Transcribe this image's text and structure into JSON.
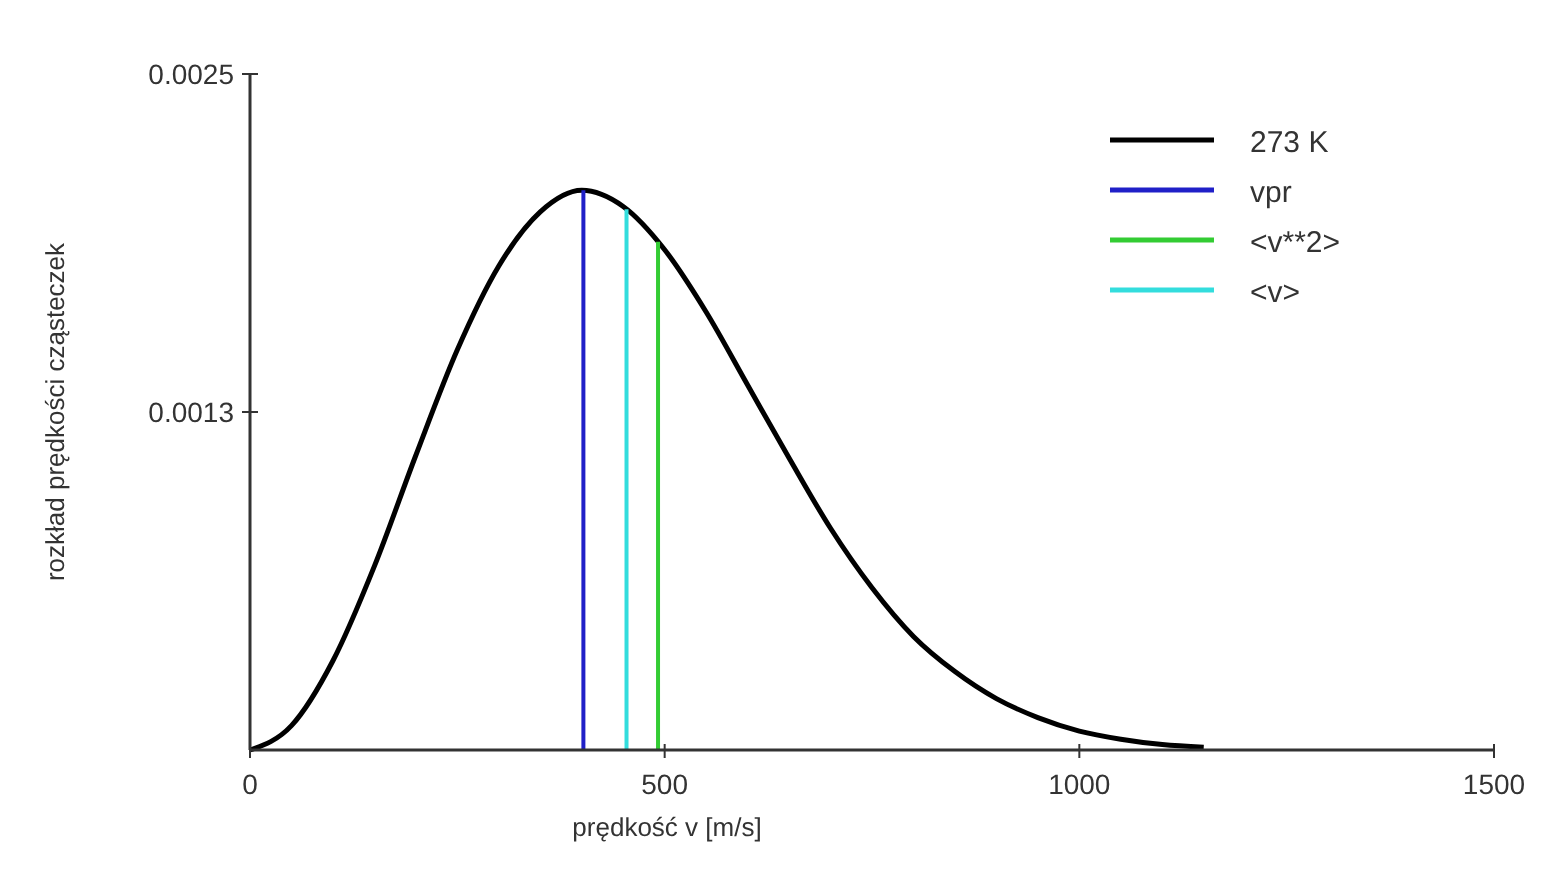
{
  "chart_data": {
    "type": "line",
    "xlabel": "prędkość v [m/s]",
    "ylabel": "rozkład prędkości cząsteczek",
    "xlim": [
      0,
      1500
    ],
    "ylim": [
      0,
      0.0025
    ],
    "xticks": [
      0,
      500,
      1000,
      1500
    ],
    "yticks": [
      {
        "value": 0.00125,
        "label": "0.0013"
      },
      0.0025
    ],
    "legend": "top right",
    "grid": false,
    "series": [
      {
        "name": "273 K",
        "color": "#000000",
        "x": [
          0,
          50,
          100,
          150,
          200,
          250,
          300,
          350,
          400,
          450,
          500,
          550,
          600,
          650,
          700,
          750,
          800,
          850,
          900,
          950,
          1000,
          1050,
          1100,
          1150
        ],
        "values": [
          0,
          9e-05,
          0.00033,
          0.00068,
          0.00109,
          0.00148,
          0.00179,
          0.00199,
          0.00207,
          0.00201,
          0.00185,
          0.00162,
          0.00135,
          0.00108,
          0.00082,
          0.0006,
          0.00042,
          0.00029,
          0.00019,
          0.00012,
          7e-05,
          4e-05,
          2e-05,
          1e-05
        ]
      },
      {
        "name": "vpr",
        "color": "#2020c8",
        "x": [
          402,
          402
        ],
        "values": [
          0,
          0.00207
        ]
      },
      {
        "name": "<v**2>",
        "color": "#33cc33",
        "x": [
          492,
          492
        ],
        "values": [
          0,
          0.00188
        ]
      },
      {
        "name": "<v>",
        "color": "#33dddd",
        "x": [
          454,
          454
        ],
        "values": [
          0,
          0.002
        ]
      }
    ]
  }
}
